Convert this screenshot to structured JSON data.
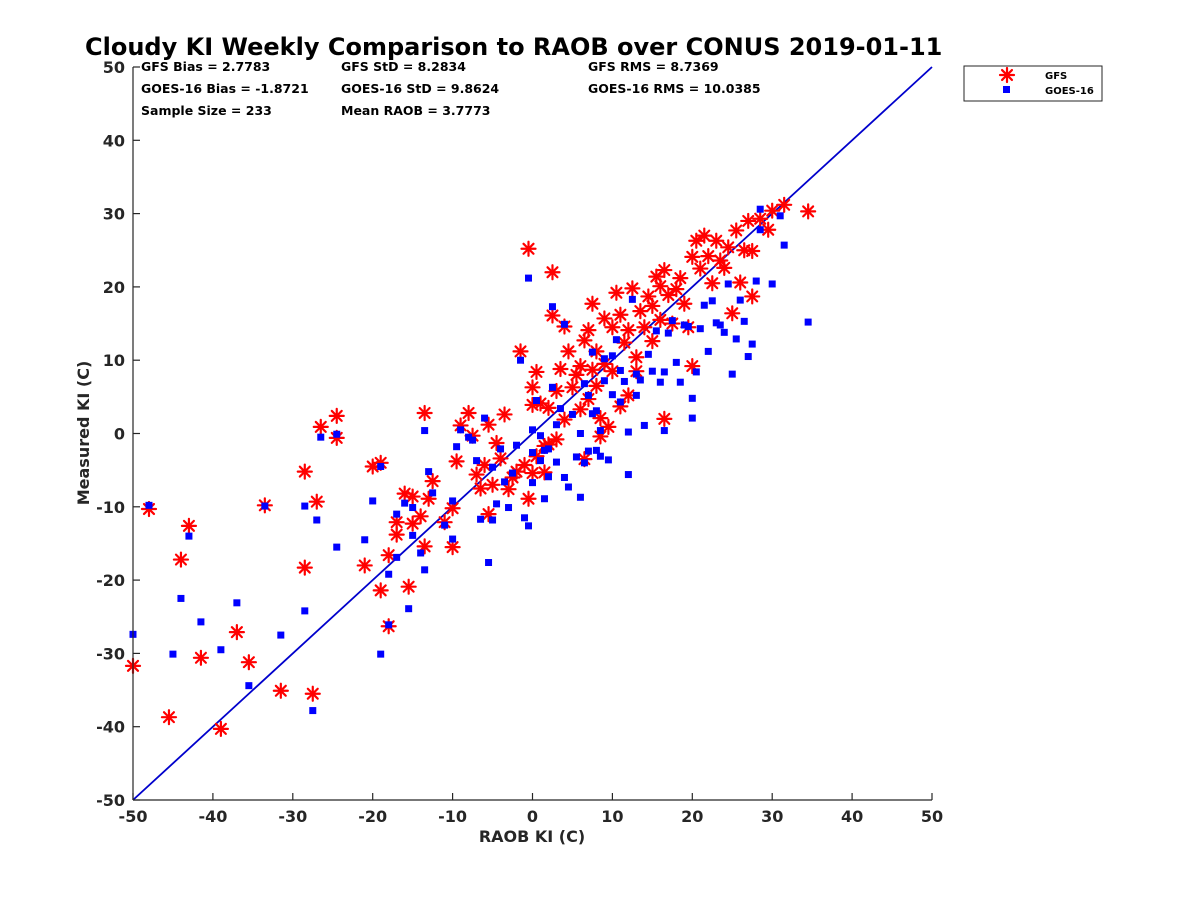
{
  "colors": {
    "gfs": "#ff0000",
    "goes16": "#0000ff",
    "one_to_one": "#0000cc",
    "axis": "#262626"
  },
  "chart_data": {
    "type": "scatter",
    "title": "Cloudy KI Weekly Comparison to RAOB over CONUS 2019-01-11",
    "xlabel": "RAOB KI (C)",
    "ylabel": "Measured KI (C)",
    "xlim": [
      -50,
      50
    ],
    "ylim": [
      -50,
      50
    ],
    "xticks": [
      "-50",
      "-40",
      "-30",
      "-20",
      "-10",
      "0",
      "10",
      "20",
      "30",
      "40",
      "50"
    ],
    "yticks": [
      "50",
      "40",
      "30",
      "20",
      "10",
      "0",
      "-10",
      "-20",
      "-30",
      "-40",
      "-50"
    ],
    "grid": false,
    "legend_position": "top-right",
    "reference_line": "y = x",
    "stats": [
      [
        "GFS Bias = 2.7783",
        "GFS StD = 8.2834",
        "GFS RMS = 8.7369"
      ],
      [
        "GOES-16 Bias = -1.8721",
        "GOES-16 StD = 9.8624",
        "GOES-16 RMS = 10.0385"
      ],
      [
        "Sample Size = 233",
        "Mean RAOB = 3.7773",
        ""
      ]
    ],
    "series": [
      {
        "name": "GFS",
        "marker": "asterisk",
        "points": [
          [
            -50,
            -31.7
          ],
          [
            -48,
            -10.3
          ],
          [
            -45.5,
            -38.7
          ],
          [
            -44,
            -17.2
          ],
          [
            -43,
            -12.6
          ],
          [
            -41.5,
            -30.6
          ],
          [
            -39,
            -40.3
          ],
          [
            -37,
            -27.1
          ],
          [
            -35.5,
            -31.2
          ],
          [
            -33.5,
            -9.8
          ],
          [
            -31.5,
            -35.1
          ],
          [
            -28.5,
            -5.2
          ],
          [
            -28.5,
            -18.3
          ],
          [
            -27.5,
            -35.5
          ],
          [
            -27,
            -9.3
          ],
          [
            -26.5,
            0.9
          ],
          [
            -24.5,
            2.4
          ],
          [
            -24.5,
            -0.6
          ],
          [
            -21,
            -18
          ],
          [
            -20,
            -4.5
          ],
          [
            -19,
            -21.4
          ],
          [
            -19,
            -4
          ],
          [
            -18,
            -26.3
          ],
          [
            -18,
            -16.6
          ],
          [
            -17,
            -13.8
          ],
          [
            -17,
            -12.1
          ],
          [
            -16,
            -8.2
          ],
          [
            -15.5,
            -20.9
          ],
          [
            -15,
            -12.3
          ],
          [
            -15,
            -8.6
          ],
          [
            -14,
            -11.3
          ],
          [
            -13.5,
            2.8
          ],
          [
            -13.5,
            -15.4
          ],
          [
            -13,
            -8.9
          ],
          [
            -12.5,
            -6.5
          ],
          [
            -11,
            -12.1
          ],
          [
            -10,
            -10.2
          ],
          [
            -10,
            -15.5
          ],
          [
            -9.5,
            -3.8
          ],
          [
            -9,
            1.1
          ],
          [
            -8,
            2.8
          ],
          [
            -7.5,
            -0.3
          ],
          [
            -7,
            -5.6
          ],
          [
            -6.5,
            -7.5
          ],
          [
            -6,
            -4.3
          ],
          [
            -5.5,
            1.2
          ],
          [
            -5.5,
            -11
          ],
          [
            -5,
            -7
          ],
          [
            -4.5,
            -1.3
          ],
          [
            -4,
            -3.4
          ],
          [
            -3.5,
            2.6
          ],
          [
            -3,
            -7.6
          ],
          [
            -2.5,
            -6
          ],
          [
            -2,
            -5.2
          ],
          [
            -1.5,
            11.2
          ],
          [
            -1,
            -4.3
          ],
          [
            -0.5,
            25.2
          ],
          [
            -0.5,
            -8.9
          ],
          [
            0,
            6.3
          ],
          [
            0,
            3.9
          ],
          [
            0,
            -5.4
          ],
          [
            0.5,
            8.4
          ],
          [
            0.5,
            -3.1
          ],
          [
            1,
            4.1
          ],
          [
            1.5,
            -1.7
          ],
          [
            1.5,
            -5.3
          ],
          [
            2,
            3.5
          ],
          [
            2,
            -1.5
          ],
          [
            2.5,
            22
          ],
          [
            2.5,
            16.1
          ],
          [
            3,
            5.8
          ],
          [
            3,
            -0.8
          ],
          [
            3.5,
            8.8
          ],
          [
            4,
            1.9
          ],
          [
            4,
            14.6
          ],
          [
            4.5,
            11.2
          ],
          [
            5,
            6.3
          ],
          [
            5.5,
            8
          ],
          [
            6,
            9.2
          ],
          [
            6,
            3.3
          ],
          [
            6.5,
            12.7
          ],
          [
            6.5,
            -3.5
          ],
          [
            7,
            14.1
          ],
          [
            7,
            4.7
          ],
          [
            7.5,
            17.7
          ],
          [
            7.5,
            8.7
          ],
          [
            8,
            11.2
          ],
          [
            8,
            6.5
          ],
          [
            8.5,
            -0.4
          ],
          [
            8.5,
            2.1
          ],
          [
            9,
            15.7
          ],
          [
            9,
            9.5
          ],
          [
            9.5,
            0.9
          ],
          [
            10,
            14.5
          ],
          [
            10,
            8.5
          ],
          [
            10.5,
            19.2
          ],
          [
            11,
            16.2
          ],
          [
            11,
            3.7
          ],
          [
            11.5,
            12.4
          ],
          [
            12,
            5.2
          ],
          [
            12,
            14.1
          ],
          [
            12.5,
            19.8
          ],
          [
            13,
            10.4
          ],
          [
            13,
            8.5
          ],
          [
            13.5,
            16.7
          ],
          [
            14,
            14.5
          ],
          [
            14.5,
            18.7
          ],
          [
            15,
            17.4
          ],
          [
            15,
            12.6
          ],
          [
            15.5,
            21.4
          ],
          [
            16,
            20.1
          ],
          [
            16,
            15.5
          ],
          [
            16.5,
            2
          ],
          [
            16.5,
            22.3
          ],
          [
            17,
            18.9
          ],
          [
            17.5,
            15
          ],
          [
            18,
            19.7
          ],
          [
            18.5,
            21.2
          ],
          [
            19,
            17.7
          ],
          [
            19.5,
            14.5
          ],
          [
            20,
            24.1
          ],
          [
            20,
            9.2
          ],
          [
            20.5,
            26.3
          ],
          [
            21,
            22.5
          ],
          [
            21.5,
            27
          ],
          [
            22,
            24.2
          ],
          [
            22.5,
            20.5
          ],
          [
            23,
            26.3
          ],
          [
            23.5,
            23.6
          ],
          [
            24,
            22.6
          ],
          [
            24.5,
            25.4
          ],
          [
            25,
            16.4
          ],
          [
            25.5,
            27.7
          ],
          [
            26,
            20.6
          ],
          [
            26.5,
            25
          ],
          [
            27,
            29
          ],
          [
            27.5,
            24.9
          ],
          [
            27.5,
            18.7
          ],
          [
            28.5,
            29.3
          ],
          [
            29.5,
            27.8
          ],
          [
            30,
            30.4
          ],
          [
            31.5,
            31.2
          ],
          [
            34.5,
            30.3
          ]
        ]
      },
      {
        "name": "GOES-16",
        "marker": "square",
        "points": [
          [
            -50,
            -27.4
          ],
          [
            -48,
            -9.8
          ],
          [
            -45,
            -30.1
          ],
          [
            -44,
            -22.5
          ],
          [
            -43,
            -14
          ],
          [
            -41.5,
            -25.7
          ],
          [
            -39,
            -29.5
          ],
          [
            -37,
            -23.1
          ],
          [
            -35.5,
            -34.4
          ],
          [
            -33.5,
            -9.9
          ],
          [
            -31.5,
            -27.5
          ],
          [
            -28.5,
            -24.2
          ],
          [
            -28.5,
            -9.9
          ],
          [
            -27.5,
            -37.8
          ],
          [
            -27,
            -11.8
          ],
          [
            -26.5,
            -0.5
          ],
          [
            -24.5,
            -15.5
          ],
          [
            -24.5,
            -0.1
          ],
          [
            -21,
            -14.5
          ],
          [
            -20,
            -9.2
          ],
          [
            -19,
            -30.1
          ],
          [
            -19,
            -4.5
          ],
          [
            -18,
            -19.2
          ],
          [
            -18,
            -26.1
          ],
          [
            -17,
            -11
          ],
          [
            -17,
            -16.9
          ],
          [
            -16,
            -9.5
          ],
          [
            -15.5,
            -23.9
          ],
          [
            -15,
            -13.9
          ],
          [
            -15,
            -10.1
          ],
          [
            -14,
            -16.3
          ],
          [
            -13.5,
            0.4
          ],
          [
            -13.5,
            -18.6
          ],
          [
            -13,
            -5.2
          ],
          [
            -12.5,
            -8.1
          ],
          [
            -11,
            -12.5
          ],
          [
            -10,
            -9.2
          ],
          [
            -10,
            -14.4
          ],
          [
            -9.5,
            -1.8
          ],
          [
            -9,
            0.5
          ],
          [
            -8,
            -0.5
          ],
          [
            -7.5,
            -0.9
          ],
          [
            -7,
            -3.7
          ],
          [
            -6.5,
            -11.7
          ],
          [
            -6,
            2.1
          ],
          [
            -5.5,
            -17.6
          ],
          [
            -5,
            -11.8
          ],
          [
            -5,
            -4.6
          ],
          [
            -4.5,
            -9.6
          ],
          [
            -4,
            -2.1
          ],
          [
            -3.5,
            -6.6
          ],
          [
            -3,
            -10.1
          ],
          [
            -2.5,
            -5.4
          ],
          [
            -2,
            -1.6
          ],
          [
            -1.5,
            10
          ],
          [
            -1,
            -11.5
          ],
          [
            -0.5,
            21.2
          ],
          [
            -0.5,
            -12.6
          ],
          [
            0,
            0.5
          ],
          [
            0,
            -2.6
          ],
          [
            0,
            -6.7
          ],
          [
            0.5,
            4.5
          ],
          [
            1,
            -3.7
          ],
          [
            1,
            -0.3
          ],
          [
            1.5,
            -2.3
          ],
          [
            1.5,
            -8.9
          ],
          [
            2,
            -2.1
          ],
          [
            2,
            -5.9
          ],
          [
            2.5,
            17.3
          ],
          [
            2.5,
            6.3
          ],
          [
            3,
            -3.9
          ],
          [
            3,
            1.2
          ],
          [
            3.5,
            3.4
          ],
          [
            4,
            -6
          ],
          [
            4,
            14.9
          ],
          [
            4.5,
            -7.3
          ],
          [
            5,
            2.6
          ],
          [
            5.5,
            -3.2
          ],
          [
            6,
            -8.7
          ],
          [
            6,
            0
          ],
          [
            6.5,
            6.8
          ],
          [
            6.5,
            -4
          ],
          [
            7,
            5.2
          ],
          [
            7,
            -2.4
          ],
          [
            7.5,
            11.1
          ],
          [
            7.5,
            2.7
          ],
          [
            8,
            -2.3
          ],
          [
            8,
            3.1
          ],
          [
            8.5,
            0.4
          ],
          [
            8.5,
            -3.1
          ],
          [
            9,
            7.2
          ],
          [
            9,
            10.2
          ],
          [
            9.5,
            -3.6
          ],
          [
            10,
            10.6
          ],
          [
            10,
            5.3
          ],
          [
            10.5,
            12.8
          ],
          [
            11,
            8.6
          ],
          [
            11,
            4.3
          ],
          [
            11.5,
            7.1
          ],
          [
            12,
            0.2
          ],
          [
            12,
            -5.6
          ],
          [
            12.5,
            18.3
          ],
          [
            13,
            5.2
          ],
          [
            13,
            8.1
          ],
          [
            13.5,
            7.3
          ],
          [
            14,
            1.1
          ],
          [
            14.5,
            10.8
          ],
          [
            15,
            8.5
          ],
          [
            15.5,
            14
          ],
          [
            16,
            7
          ],
          [
            16.5,
            0.4
          ],
          [
            16.5,
            8.4
          ],
          [
            17,
            13.7
          ],
          [
            17.5,
            15.4
          ],
          [
            18,
            9.7
          ],
          [
            18.5,
            7
          ],
          [
            19,
            14.8
          ],
          [
            19.5,
            14.6
          ],
          [
            20,
            4.8
          ],
          [
            20,
            2.1
          ],
          [
            20.5,
            8.4
          ],
          [
            21,
            14.3
          ],
          [
            21.5,
            17.5
          ],
          [
            22,
            11.2
          ],
          [
            22.5,
            18.1
          ],
          [
            23,
            15.1
          ],
          [
            23.5,
            14.8
          ],
          [
            24,
            13.8
          ],
          [
            24.5,
            20.4
          ],
          [
            25,
            8.1
          ],
          [
            25.5,
            12.9
          ],
          [
            26,
            18.2
          ],
          [
            26.5,
            15.3
          ],
          [
            27,
            10.5
          ],
          [
            27.5,
            12.2
          ],
          [
            28,
            20.8
          ],
          [
            28.5,
            30.6
          ],
          [
            28.5,
            27.8
          ],
          [
            30,
            20.4
          ],
          [
            31,
            29.7
          ],
          [
            31.5,
            25.7
          ],
          [
            34.5,
            15.2
          ]
        ]
      }
    ]
  }
}
